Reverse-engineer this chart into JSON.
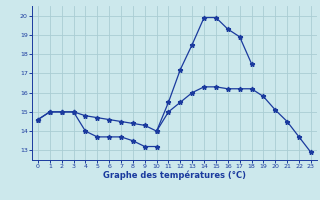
{
  "title": "Graphe des températures (°C)",
  "bg_color": "#cce8ec",
  "line_color": "#1a3a9e",
  "grid_color": "#aacdd4",
  "xlim": [
    -0.5,
    23.5
  ],
  "ylim": [
    12.5,
    20.5
  ],
  "xticks": [
    0,
    1,
    2,
    3,
    4,
    5,
    6,
    7,
    8,
    9,
    10,
    11,
    12,
    13,
    14,
    15,
    16,
    17,
    18,
    19,
    20,
    21,
    22,
    23
  ],
  "yticks": [
    13,
    14,
    15,
    16,
    17,
    18,
    19,
    20
  ],
  "line1_x": [
    0,
    1,
    2,
    3,
    4,
    5,
    6,
    7,
    8,
    9,
    10
  ],
  "line1_y": [
    14.6,
    15.0,
    15.0,
    15.0,
    14.0,
    13.7,
    13.7,
    13.7,
    13.5,
    13.2,
    13.2
  ],
  "line2_x": [
    0,
    1,
    2,
    3,
    4,
    5,
    6,
    7,
    8,
    9,
    10,
    11,
    12,
    13,
    14,
    15,
    16,
    17,
    18,
    19,
    20,
    21,
    22,
    23
  ],
  "line2_y": [
    14.6,
    15.0,
    15.0,
    15.0,
    14.8,
    14.7,
    14.6,
    14.5,
    14.4,
    14.3,
    14.0,
    15.0,
    15.5,
    16.0,
    16.3,
    16.3,
    16.2,
    16.2,
    16.2,
    15.8,
    15.1,
    14.5,
    13.7,
    12.9
  ],
  "line3_x": [
    10,
    11,
    12,
    13,
    14,
    15,
    16,
    17,
    18
  ],
  "line3_y": [
    14.0,
    15.5,
    17.2,
    18.5,
    19.9,
    19.9,
    19.3,
    18.9,
    17.5
  ]
}
